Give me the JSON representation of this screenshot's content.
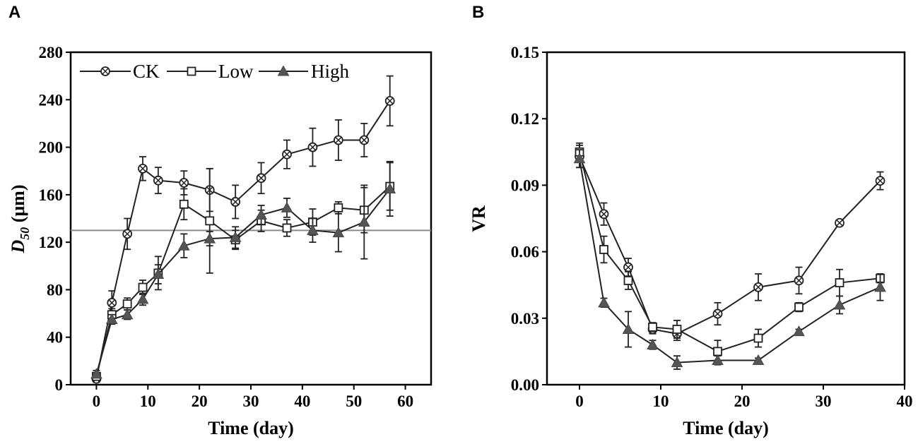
{
  "chart_data": [
    {
      "panel": "A",
      "type": "line",
      "xlabel": "Time (day)",
      "ylabel_main": "D",
      "ylabel_sub": "50",
      "ylabel_unit": " (μm)",
      "xlim": [
        -5,
        65
      ],
      "ylim": [
        0,
        280
      ],
      "xticks": [
        0,
        10,
        20,
        30,
        40,
        50,
        60
      ],
      "yticks": [
        0,
        40,
        80,
        120,
        160,
        200,
        240,
        280
      ],
      "reference_line": 130,
      "legend_position": "top-left",
      "series": [
        {
          "name": "CK",
          "marker": "circle-x",
          "x": [
            0,
            3,
            6,
            9,
            12,
            17,
            22,
            27,
            32,
            37,
            42,
            47,
            52,
            57
          ],
          "y": [
            5,
            69,
            127,
            182,
            172,
            170,
            164,
            154,
            174,
            194,
            200,
            206,
            206,
            239
          ],
          "err": [
            3,
            10,
            13,
            10,
            11,
            10,
            18,
            14,
            13,
            12,
            16,
            17,
            14,
            21
          ]
        },
        {
          "name": "Low",
          "marker": "square-open",
          "x": [
            0,
            3,
            6,
            9,
            12,
            17,
            22,
            27,
            32,
            37,
            42,
            47,
            52,
            57
          ],
          "y": [
            7,
            59,
            68,
            82,
            94,
            152,
            138,
            122,
            138,
            132,
            137,
            149,
            147,
            167
          ],
          "err": [
            3,
            5,
            5,
            6,
            14,
            13,
            44,
            8,
            9,
            7,
            11,
            5,
            19,
            20
          ]
        },
        {
          "name": "High",
          "marker": "triangle-filled",
          "x": [
            0,
            3,
            6,
            9,
            12,
            17,
            22,
            27,
            32,
            37,
            42,
            47,
            52,
            57
          ],
          "y": [
            9,
            55,
            59,
            72,
            93,
            117,
            123,
            124,
            143,
            149,
            130,
            128,
            137,
            165
          ],
          "err": [
            3,
            4,
            4,
            5,
            8,
            10,
            6,
            9,
            8,
            8,
            10,
            16,
            31,
            23
          ]
        }
      ]
    },
    {
      "panel": "B",
      "type": "line",
      "xlabel": "Time (day)",
      "ylabel": "VR",
      "xlim": [
        -4,
        40
      ],
      "ylim": [
        0,
        0.15
      ],
      "xticks": [
        0,
        10,
        20,
        30,
        40
      ],
      "yticks": [
        "0.00",
        "0.03",
        "0.06",
        "0.09",
        "0.12",
        "0.15"
      ],
      "series": [
        {
          "name": "CK",
          "marker": "circle-x",
          "x": [
            0,
            3,
            6,
            9,
            12,
            17,
            22,
            27,
            32,
            37
          ],
          "y": [
            0.103,
            0.077,
            0.053,
            0.025,
            0.023,
            0.032,
            0.044,
            0.047,
            0.073,
            0.092
          ],
          "err": [
            0.005,
            0.005,
            0.004,
            0.002,
            0.003,
            0.005,
            0.006,
            0.006,
            0.001,
            0.004
          ]
        },
        {
          "name": "Low",
          "marker": "square-open",
          "x": [
            0,
            3,
            6,
            9,
            12,
            17,
            22,
            27,
            32,
            37
          ],
          "y": [
            0.105,
            0.061,
            0.047,
            0.026,
            0.025,
            0.015,
            0.021,
            0.035,
            0.046,
            0.048
          ],
          "err": [
            0.004,
            0.006,
            0.004,
            0.002,
            0.004,
            0.005,
            0.004,
            0.002,
            0.006,
            0.002
          ]
        },
        {
          "name": "High",
          "marker": "triangle-filled",
          "x": [
            0,
            3,
            6,
            9,
            12,
            17,
            22,
            27,
            32,
            37
          ],
          "y": [
            0.102,
            0.037,
            0.025,
            0.018,
            0.01,
            0.011,
            0.011,
            0.024,
            0.036,
            0.044
          ],
          "err": [
            0.004,
            0.002,
            0.008,
            0.002,
            0.003,
            0.002,
            0.001,
            0.001,
            0.004,
            0.006
          ]
        }
      ]
    }
  ]
}
